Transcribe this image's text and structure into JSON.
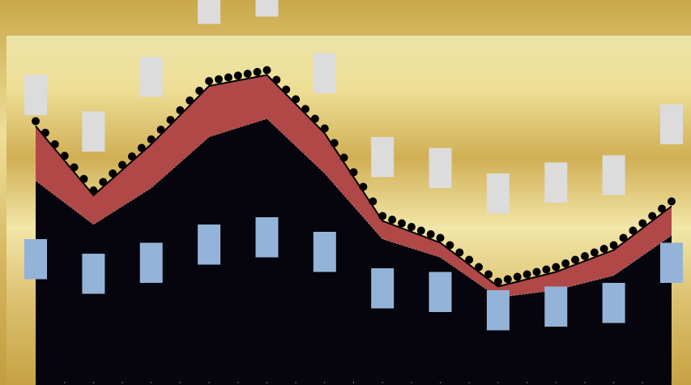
{
  "chart_data": {
    "type": "area",
    "title": "",
    "xlabel": "",
    "ylabel": "",
    "grid": false,
    "legend": "none",
    "x_count": 12,
    "ylim": [
      0,
      500
    ],
    "series": [
      {
        "name": "",
        "color": "#06040c",
        "values": [
          280,
          220,
          270,
          340,
          365,
          290,
          200,
          175,
          120,
          130,
          150,
          205
        ]
      },
      {
        "name": "",
        "color": "#b04848",
        "values": [
          75,
          40,
          60,
          70,
          60,
          55,
          25,
          20,
          15,
          25,
          35,
          40
        ]
      }
    ],
    "upper_boxes": [
      {
        "top": 425,
        "bottom": 370,
        "label": ""
      },
      {
        "top": 375,
        "bottom": 320,
        "label": ""
      },
      {
        "top": 450,
        "bottom": 395,
        "label": ""
      },
      {
        "top": 550,
        "bottom": 495,
        "label": ""
      },
      {
        "top": 560,
        "bottom": 505,
        "label": ""
      },
      {
        "top": 455,
        "bottom": 400,
        "label": ""
      },
      {
        "top": 340,
        "bottom": 285,
        "label": ""
      },
      {
        "top": 325,
        "bottom": 270,
        "label": ""
      },
      {
        "top": 290,
        "bottom": 235,
        "label": ""
      },
      {
        "top": 305,
        "bottom": 250,
        "label": ""
      },
      {
        "top": 315,
        "bottom": 260,
        "label": ""
      },
      {
        "top": 385,
        "bottom": 330,
        "label": ""
      }
    ],
    "lower_boxes": [
      {
        "top": 200,
        "bottom": 145,
        "label": ""
      },
      {
        "top": 180,
        "bottom": 125,
        "label": ""
      },
      {
        "top": 195,
        "bottom": 140,
        "label": ""
      },
      {
        "top": 220,
        "bottom": 165,
        "label": ""
      },
      {
        "top": 230,
        "bottom": 175,
        "label": ""
      },
      {
        "top": 210,
        "bottom": 155,
        "label": ""
      },
      {
        "top": 160,
        "bottom": 105,
        "label": ""
      },
      {
        "top": 155,
        "bottom": 100,
        "label": ""
      },
      {
        "top": 130,
        "bottom": 75,
        "label": ""
      },
      {
        "top": 135,
        "bottom": 80,
        "label": ""
      },
      {
        "top": 140,
        "bottom": 85,
        "label": ""
      },
      {
        "top": 195,
        "bottom": 140,
        "label": ""
      }
    ]
  },
  "colors": {
    "gold_dark": "#c8a445",
    "gold_light": "#f0e3a0",
    "upper_box": "#dcdcdc",
    "lower_box": "#93b4d8",
    "area": "#06040c",
    "band": "#b04848",
    "marker": "#000000"
  }
}
